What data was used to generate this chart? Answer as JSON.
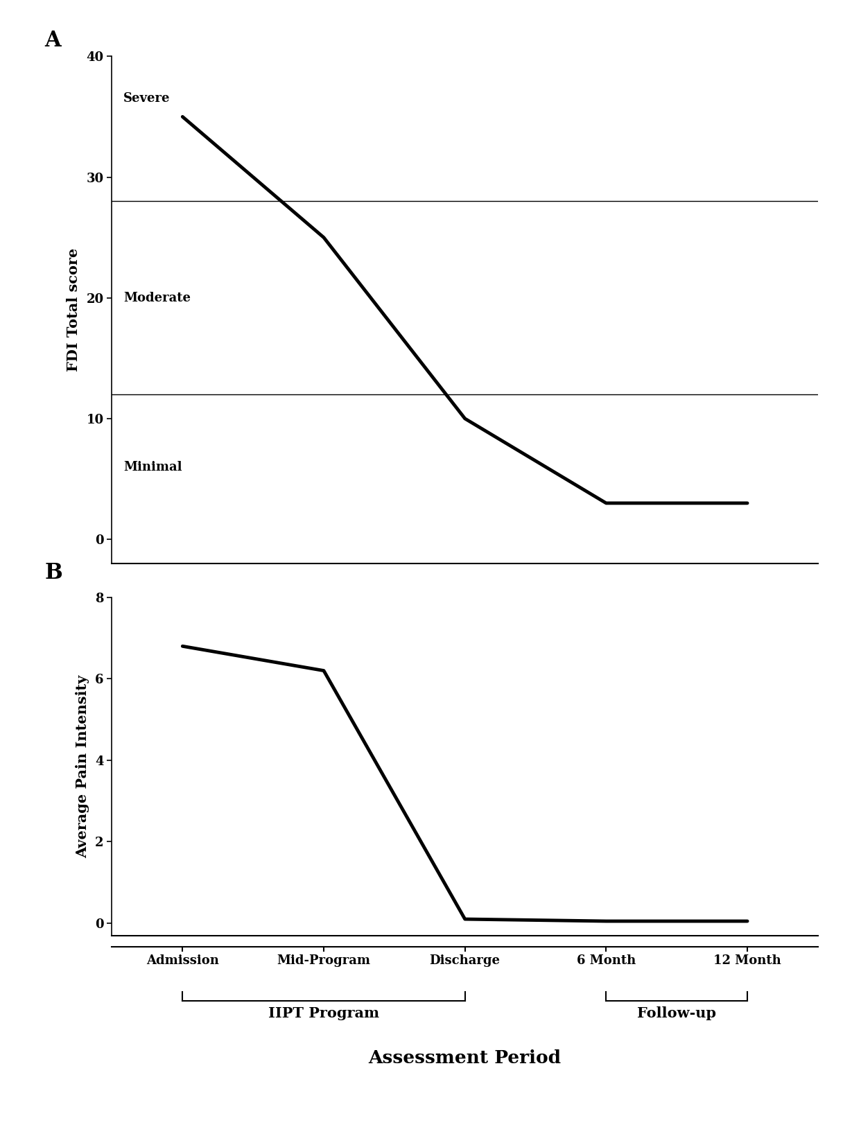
{
  "panel_A": {
    "x_positions": [
      0,
      1,
      2,
      3,
      4
    ],
    "y_values": [
      35,
      25,
      10,
      3,
      3
    ],
    "ylabel": "FDI Total score",
    "ylim": [
      -2,
      40
    ],
    "yticks": [
      0,
      10,
      20,
      30,
      40
    ],
    "hlines": [
      28,
      12
    ],
    "hline_color": "#000000",
    "hline_lw": 1.0,
    "severity_labels": [
      {
        "text": "Severe",
        "x_data": 0.08,
        "y": 36.5
      },
      {
        "text": "Moderate",
        "x_data": 0.08,
        "y": 20
      },
      {
        "text": "Minimal",
        "x_data": 0.08,
        "y": 6
      }
    ],
    "line_color": "#000000",
    "line_lw": 3.5
  },
  "panel_B": {
    "x_positions": [
      0,
      1,
      2,
      3,
      4
    ],
    "y_values": [
      6.8,
      6.2,
      0.1,
      0.05,
      0.05
    ],
    "ylabel": "Average Pain Intensity",
    "ylim": [
      -0.3,
      8
    ],
    "yticks": [
      0,
      2,
      4,
      6,
      8
    ],
    "line_color": "#000000",
    "line_lw": 3.5
  },
  "shared": {
    "x_labels": [
      "Admission",
      "Mid-Program",
      "Discharge",
      "6 Month",
      "12 Month"
    ],
    "bracket1_indices": [
      0,
      2
    ],
    "bracket1_label": "IIPT Program",
    "bracket2_indices": [
      3,
      4
    ],
    "bracket2_label": "Follow-up",
    "xlabel": "Assessment Period",
    "panel_A_label": "A",
    "panel_B_label": "B",
    "bg_color": "#ffffff",
    "tick_label_fontsize": 13,
    "axis_label_fontsize": 15,
    "bracket_label_fontsize": 15,
    "xlabel_fontsize": 19,
    "panel_label_fontsize": 22,
    "severity_fontsize": 13,
    "xlim": [
      -0.5,
      4.5
    ]
  }
}
